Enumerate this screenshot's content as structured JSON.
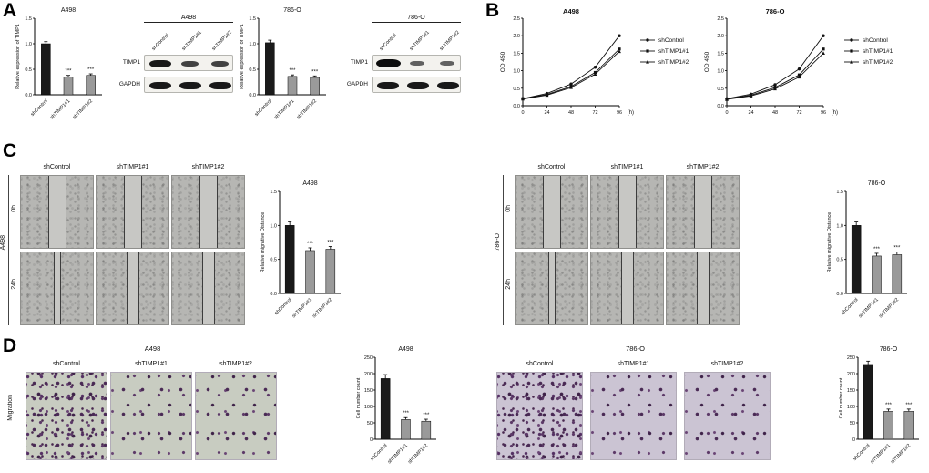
{
  "panel_labels": {
    "a": "A",
    "b": "B",
    "c": "C",
    "d": "D"
  },
  "groups": {
    "blot_a498": {
      "title": "A498",
      "lanes": [
        "shControl",
        "shTIMP1#1",
        "shTIMP1#2"
      ],
      "rows": [
        "TIMP1",
        "GAPDH"
      ]
    },
    "blot_786o": {
      "title": "786-O",
      "lanes": [
        "shControl",
        "shTIMP1#1",
        "shTIMP1#2"
      ],
      "rows": [
        "TIMP1",
        "GAPDH"
      ]
    },
    "scratch_a498": {
      "cell_line": "A498",
      "columns": [
        "shControl",
        "shTIMP1#1",
        "shTIMP1#2"
      ],
      "rows": [
        "0h",
        "24h"
      ]
    },
    "scratch_786o": {
      "cell_line": "786-O",
      "columns": [
        "shControl",
        "shTIMP1#1",
        "shTIMP1#2"
      ],
      "rows": [
        "0h",
        "24h"
      ]
    },
    "migration_a498": {
      "title": "A498",
      "row_label": "Migration",
      "columns": [
        "shControl",
        "shTIMP1#1",
        "shTIMP1#2"
      ]
    },
    "migration_786o": {
      "title": "786-O",
      "columns": [
        "shControl",
        "shTIMP1#1",
        "shTIMP1#2"
      ]
    }
  },
  "chart_data": [
    {
      "id": "a498-timp1-expression",
      "type": "bar",
      "title": "A498",
      "ylabel": "Relative expression of TIMP1",
      "categories": [
        "shControl",
        "shTIMP1#1",
        "shTIMP1#2"
      ],
      "values": [
        1.0,
        0.35,
        0.38
      ],
      "errors": [
        0.04,
        0.03,
        0.03
      ],
      "significance": [
        "",
        "***",
        "***"
      ],
      "ylim": [
        0,
        1.5
      ],
      "ytick_step": 0.5,
      "bar_colors": [
        "#1a1a1a",
        "#9a9a9a",
        "#9a9a9a"
      ]
    },
    {
      "id": "786o-timp1-expression",
      "type": "bar",
      "title": "786-O",
      "ylabel": "Relative expression of TIMP1",
      "categories": [
        "shControl",
        "shTIMP1#1",
        "shTIMP1#2"
      ],
      "values": [
        1.02,
        0.36,
        0.34
      ],
      "errors": [
        0.05,
        0.03,
        0.03
      ],
      "significance": [
        "",
        "***",
        "***"
      ],
      "ylim": [
        0,
        1.5
      ],
      "ytick_step": 0.5,
      "bar_colors": [
        "#1a1a1a",
        "#9a9a9a",
        "#9a9a9a"
      ]
    },
    {
      "id": "a498-cck8",
      "type": "line",
      "title": "A498",
      "ylabel": "OD 450",
      "xlabel": "(h)",
      "x": [
        0,
        24,
        48,
        72,
        96
      ],
      "series": [
        {
          "name": "shControl",
          "marker": "circle",
          "values": [
            0.2,
            0.35,
            0.62,
            1.1,
            2.0
          ]
        },
        {
          "name": "shTIMP1#1",
          "marker": "square",
          "values": [
            0.2,
            0.32,
            0.55,
            0.95,
            1.62
          ]
        },
        {
          "name": "shTIMP1#2",
          "marker": "triangle",
          "values": [
            0.19,
            0.3,
            0.52,
            0.9,
            1.55
          ]
        }
      ],
      "ylim": [
        0,
        2.5
      ],
      "ytick_step": 0.5,
      "legend_position": "right"
    },
    {
      "id": "786o-cck8",
      "type": "line",
      "title": "786-O",
      "ylabel": "OD 450",
      "xlabel": "(h)",
      "x": [
        0,
        24,
        48,
        72,
        96
      ],
      "series": [
        {
          "name": "shControl",
          "marker": "circle",
          "values": [
            0.2,
            0.33,
            0.6,
            1.05,
            2.0
          ]
        },
        {
          "name": "shTIMP1#1",
          "marker": "square",
          "values": [
            0.19,
            0.3,
            0.52,
            0.88,
            1.62
          ]
        },
        {
          "name": "shTIMP1#2",
          "marker": "triangle",
          "values": [
            0.18,
            0.28,
            0.48,
            0.82,
            1.5
          ]
        }
      ],
      "ylim": [
        0,
        2.5
      ],
      "ytick_step": 0.5,
      "legend_position": "right"
    },
    {
      "id": "a498-migrative-distance",
      "type": "bar",
      "title": "A498",
      "ylabel": "Relative migrative Distance",
      "categories": [
        "shControl",
        "shTIMP1#1",
        "shTIMP1#2"
      ],
      "values": [
        1.0,
        0.63,
        0.65
      ],
      "errors": [
        0.05,
        0.04,
        0.04
      ],
      "significance": [
        "",
        "***",
        "***"
      ],
      "ylim": [
        0,
        1.5
      ],
      "ytick_step": 0.5,
      "bar_colors": [
        "#1a1a1a",
        "#9a9a9a",
        "#9a9a9a"
      ]
    },
    {
      "id": "786o-migrative-distance",
      "type": "bar",
      "title": "786-O",
      "ylabel": "Relative migrative Distance",
      "categories": [
        "shControl",
        "shTIMP1#1",
        "shTIMP1#2"
      ],
      "values": [
        1.0,
        0.55,
        0.57
      ],
      "errors": [
        0.05,
        0.04,
        0.04
      ],
      "significance": [
        "",
        "***",
        "***"
      ],
      "ylim": [
        0,
        1.5
      ],
      "ytick_step": 0.5,
      "bar_colors": [
        "#1a1a1a",
        "#9a9a9a",
        "#9a9a9a"
      ]
    },
    {
      "id": "a498-migration-cell-count",
      "type": "bar",
      "title": "A498",
      "ylabel": "Cell number count",
      "categories": [
        "shControl",
        "shTIMP1#1",
        "shTIMP1#2"
      ],
      "values": [
        185,
        60,
        55
      ],
      "errors": [
        12,
        6,
        6
      ],
      "significance": [
        "",
        "***",
        "***"
      ],
      "ylim": [
        0,
        250
      ],
      "ytick_step": 50,
      "bar_colors": [
        "#1a1a1a",
        "#9a9a9a",
        "#9a9a9a"
      ]
    },
    {
      "id": "786o-migration-cell-count",
      "type": "bar",
      "title": "786-O",
      "ylabel": "Cell number count",
      "categories": [
        "shControl",
        "shTIMP1#1",
        "shTIMP1#2"
      ],
      "values": [
        228,
        85,
        85
      ],
      "errors": [
        10,
        7,
        7
      ],
      "significance": [
        "",
        "***",
        "***"
      ],
      "ylim": [
        0,
        250
      ],
      "ytick_step": 50,
      "bar_colors": [
        "#1a1a1a",
        "#9a9a9a",
        "#9a9a9a"
      ]
    }
  ]
}
